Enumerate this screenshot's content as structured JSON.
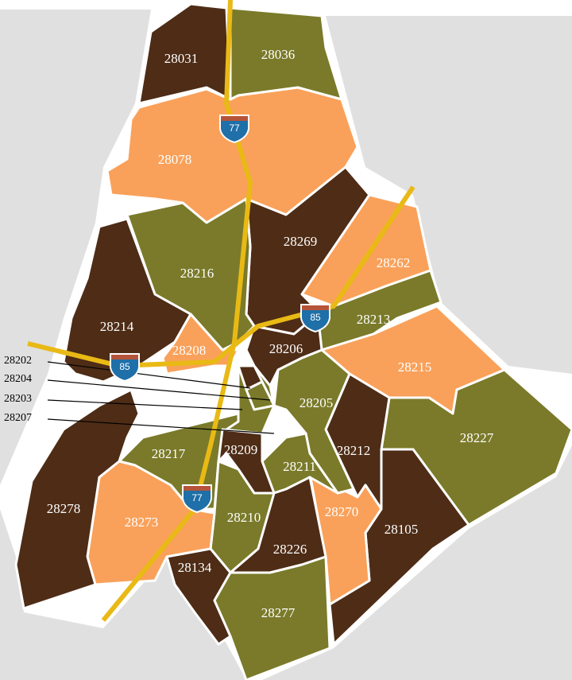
{
  "zip_labels": [
    "28031",
    "28036",
    "28078",
    "28269",
    "28262",
    "28213",
    "28215",
    "28227",
    "28105",
    "28212",
    "28270",
    "28205",
    "28211",
    "28206",
    "28216",
    "28214",
    "28208",
    "28217",
    "28209",
    "28210",
    "28273",
    "28278",
    "28134",
    "28226",
    "28277"
  ],
  "callouts": [
    "28202",
    "28204",
    "28203",
    "28207"
  ],
  "shields": [
    "77",
    "77",
    "85",
    "85"
  ]
}
